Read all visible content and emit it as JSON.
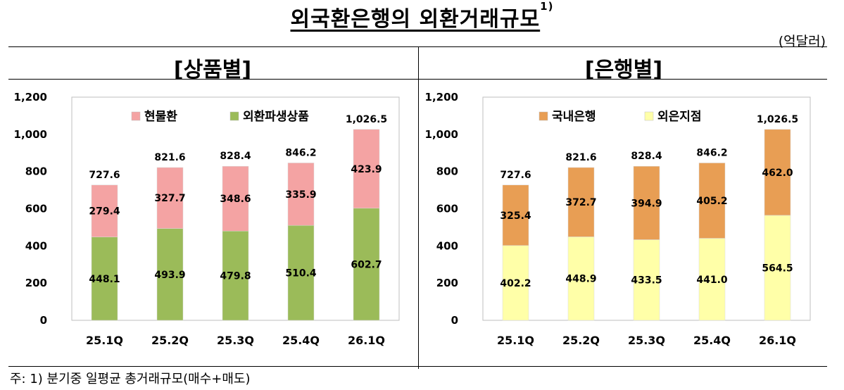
{
  "header": {
    "title": "외국환은행의 외환거래규모",
    "title_sup": "1)",
    "unit": "(억달러)"
  },
  "footnote": "주: 1) 분기중 일평균 총거래규모(매수+매도)",
  "colors": {
    "spot": "#F4A3A3",
    "deriv": "#9BBB59",
    "domestic": "#E89E54",
    "foreign": "#FFFFA8"
  },
  "chart_data": [
    {
      "type": "bar",
      "stacked": true,
      "title": "[상품별]",
      "categories": [
        "25.1Q",
        "25.2Q",
        "25.3Q",
        "25.4Q",
        "26.1Q"
      ],
      "ylim": [
        0,
        1200
      ],
      "yticks": [
        "0",
        "200",
        "400",
        "600",
        "800",
        "1,000",
        "1,200"
      ],
      "legend_position": "top",
      "series": [
        {
          "name": "외환파생상품",
          "color_key": "deriv",
          "values": [
            448.1,
            493.9,
            479.8,
            510.4,
            602.7
          ],
          "labels": [
            "448.1",
            "493.9",
            "479.8",
            "510.4",
            "602.7"
          ]
        },
        {
          "name": "현물환",
          "color_key": "spot",
          "values": [
            279.4,
            327.7,
            348.6,
            335.9,
            423.9
          ],
          "labels": [
            "279.4",
            "327.7",
            "348.6",
            "335.9",
            "423.9"
          ]
        }
      ],
      "legend": [
        "현물환",
        "외환파생상품"
      ],
      "totals": [
        727.6,
        821.6,
        828.4,
        846.2,
        1026.5
      ],
      "total_labels": [
        "727.6",
        "821.6",
        "828.4",
        "846.2",
        "1,026.5"
      ]
    },
    {
      "type": "bar",
      "stacked": true,
      "title": "[은행별]",
      "categories": [
        "25.1Q",
        "25.2Q",
        "25.3Q",
        "25.4Q",
        "26.1Q"
      ],
      "ylim": [
        0,
        1200
      ],
      "yticks": [
        "0",
        "200",
        "400",
        "600",
        "800",
        "1,000",
        "1,200"
      ],
      "legend_position": "top",
      "series": [
        {
          "name": "외은지점",
          "color_key": "foreign",
          "values": [
            402.2,
            448.9,
            433.5,
            441.0,
            564.5
          ],
          "labels": [
            "402.2",
            "448.9",
            "433.5",
            "441.0",
            "564.5"
          ]
        },
        {
          "name": "국내은행",
          "color_key": "domestic",
          "values": [
            325.4,
            372.7,
            394.9,
            405.2,
            462.0
          ],
          "labels": [
            "325.4",
            "372.7",
            "394.9",
            "405.2",
            "462.0"
          ]
        }
      ],
      "legend": [
        "국내은행",
        "외은지점"
      ],
      "totals": [
        727.6,
        821.6,
        828.4,
        846.2,
        1026.5
      ],
      "total_labels": [
        "727.6",
        "821.6",
        "828.4",
        "846.2",
        "1,026.5"
      ]
    }
  ]
}
